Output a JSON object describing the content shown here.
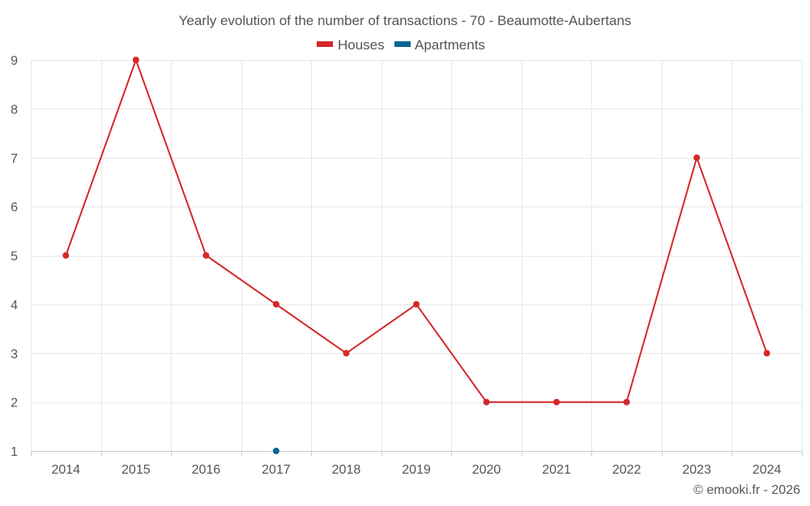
{
  "chart_data": {
    "type": "line",
    "title": "Yearly evolution of the number of transactions - 70 - Beaumotte-Aubertans",
    "categories": [
      "2014",
      "2015",
      "2016",
      "2017",
      "2018",
      "2019",
      "2020",
      "2021",
      "2022",
      "2023",
      "2024"
    ],
    "series": [
      {
        "name": "Houses",
        "color": "#d62728",
        "values": [
          5,
          9,
          5,
          4,
          3,
          4,
          2,
          2,
          2,
          7,
          3
        ]
      },
      {
        "name": "Apartments",
        "color": "#0a6396",
        "values": [
          null,
          null,
          null,
          1,
          null,
          null,
          null,
          null,
          null,
          null,
          null
        ]
      }
    ],
    "ylim": [
      1,
      9
    ],
    "yticks": [
      1,
      2,
      3,
      4,
      5,
      6,
      7,
      8,
      9
    ],
    "grid": true,
    "legend_position": "top-center",
    "xlabel": "",
    "ylabel": ""
  },
  "credit": "© emooki.fr - 2026"
}
